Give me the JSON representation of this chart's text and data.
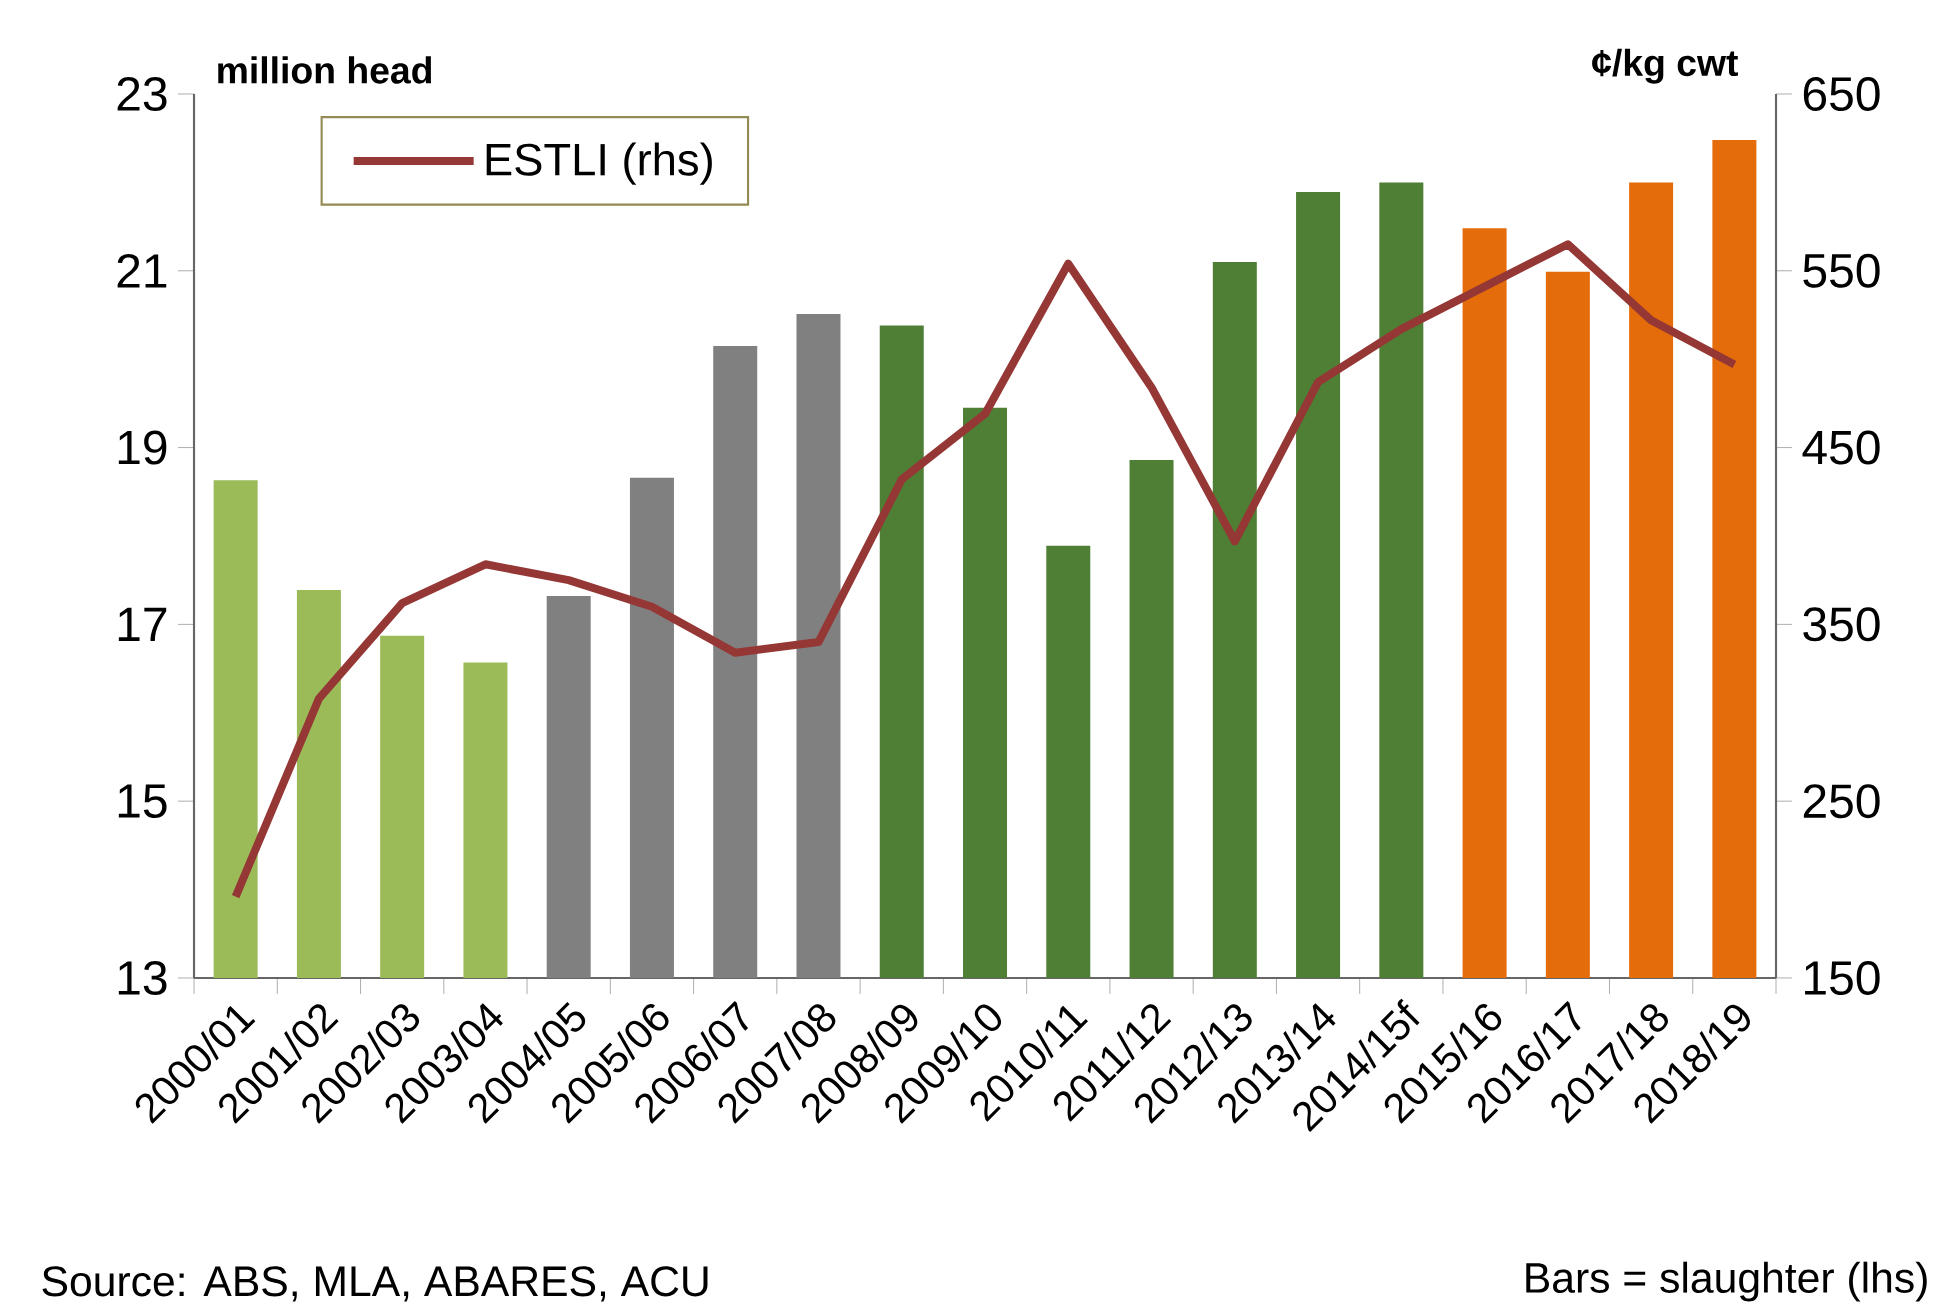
{
  "chart_data": {
    "type": "bar",
    "categories": [
      "2000/01",
      "2001/02",
      "2002/03",
      "2003/04",
      "2004/05",
      "2005/06",
      "2006/07",
      "2007/08",
      "2008/09",
      "2009/10",
      "2010/11",
      "2011/12",
      "2012/13",
      "2013/14",
      "2014/15f",
      "2015/16",
      "2016/17",
      "2017/18",
      "2018/19"
    ],
    "series": [
      {
        "colors": [
          "#9bbb59",
          "#9bbb59",
          "#9bbb59",
          "#9bbb59",
          "#808080",
          "#808080",
          "#808080",
          "#808080",
          "#4f7f35",
          "#4f7f35",
          "#4f7f35",
          "#4f7f35",
          "#4f7f35",
          "#4f7f35",
          "#4f7f35",
          "#e46c0a",
          "#e46c0a",
          "#e46c0a",
          "#e46c0a"
        ],
        "values": [
          18.63,
          17.39,
          16.87,
          16.57,
          17.32,
          18.66,
          20.15,
          20.51,
          20.38,
          19.45,
          17.89,
          18.86,
          21.1,
          21.89,
          22.0,
          21.48,
          20.99,
          22.0,
          22.48
        ]
      },
      {
        "type": "line",
        "name": "ESTLI (rhs)",
        "color": "#953735",
        "axis": "y2",
        "values": [
          196,
          308,
          362,
          384,
          375,
          360,
          334,
          340,
          432,
          469,
          554,
          484,
          397,
          487,
          517,
          541,
          565,
          522,
          497
        ]
      }
    ],
    "ylabel": "million head",
    "y2label": "¢/kg cwt",
    "ylim": [
      13,
      23
    ],
    "yticks": [
      13,
      15,
      17,
      19,
      21,
      23
    ],
    "y2lim": [
      150,
      650
    ],
    "y2ticks": [
      150,
      250,
      350,
      450,
      550,
      650
    ],
    "legend": "top left",
    "marker": "none",
    "line_style": "solid",
    "annotations": [
      "Source: ABS, MLA, ABARES, ACU",
      "Bars = slaughter (lhs)"
    ]
  }
}
